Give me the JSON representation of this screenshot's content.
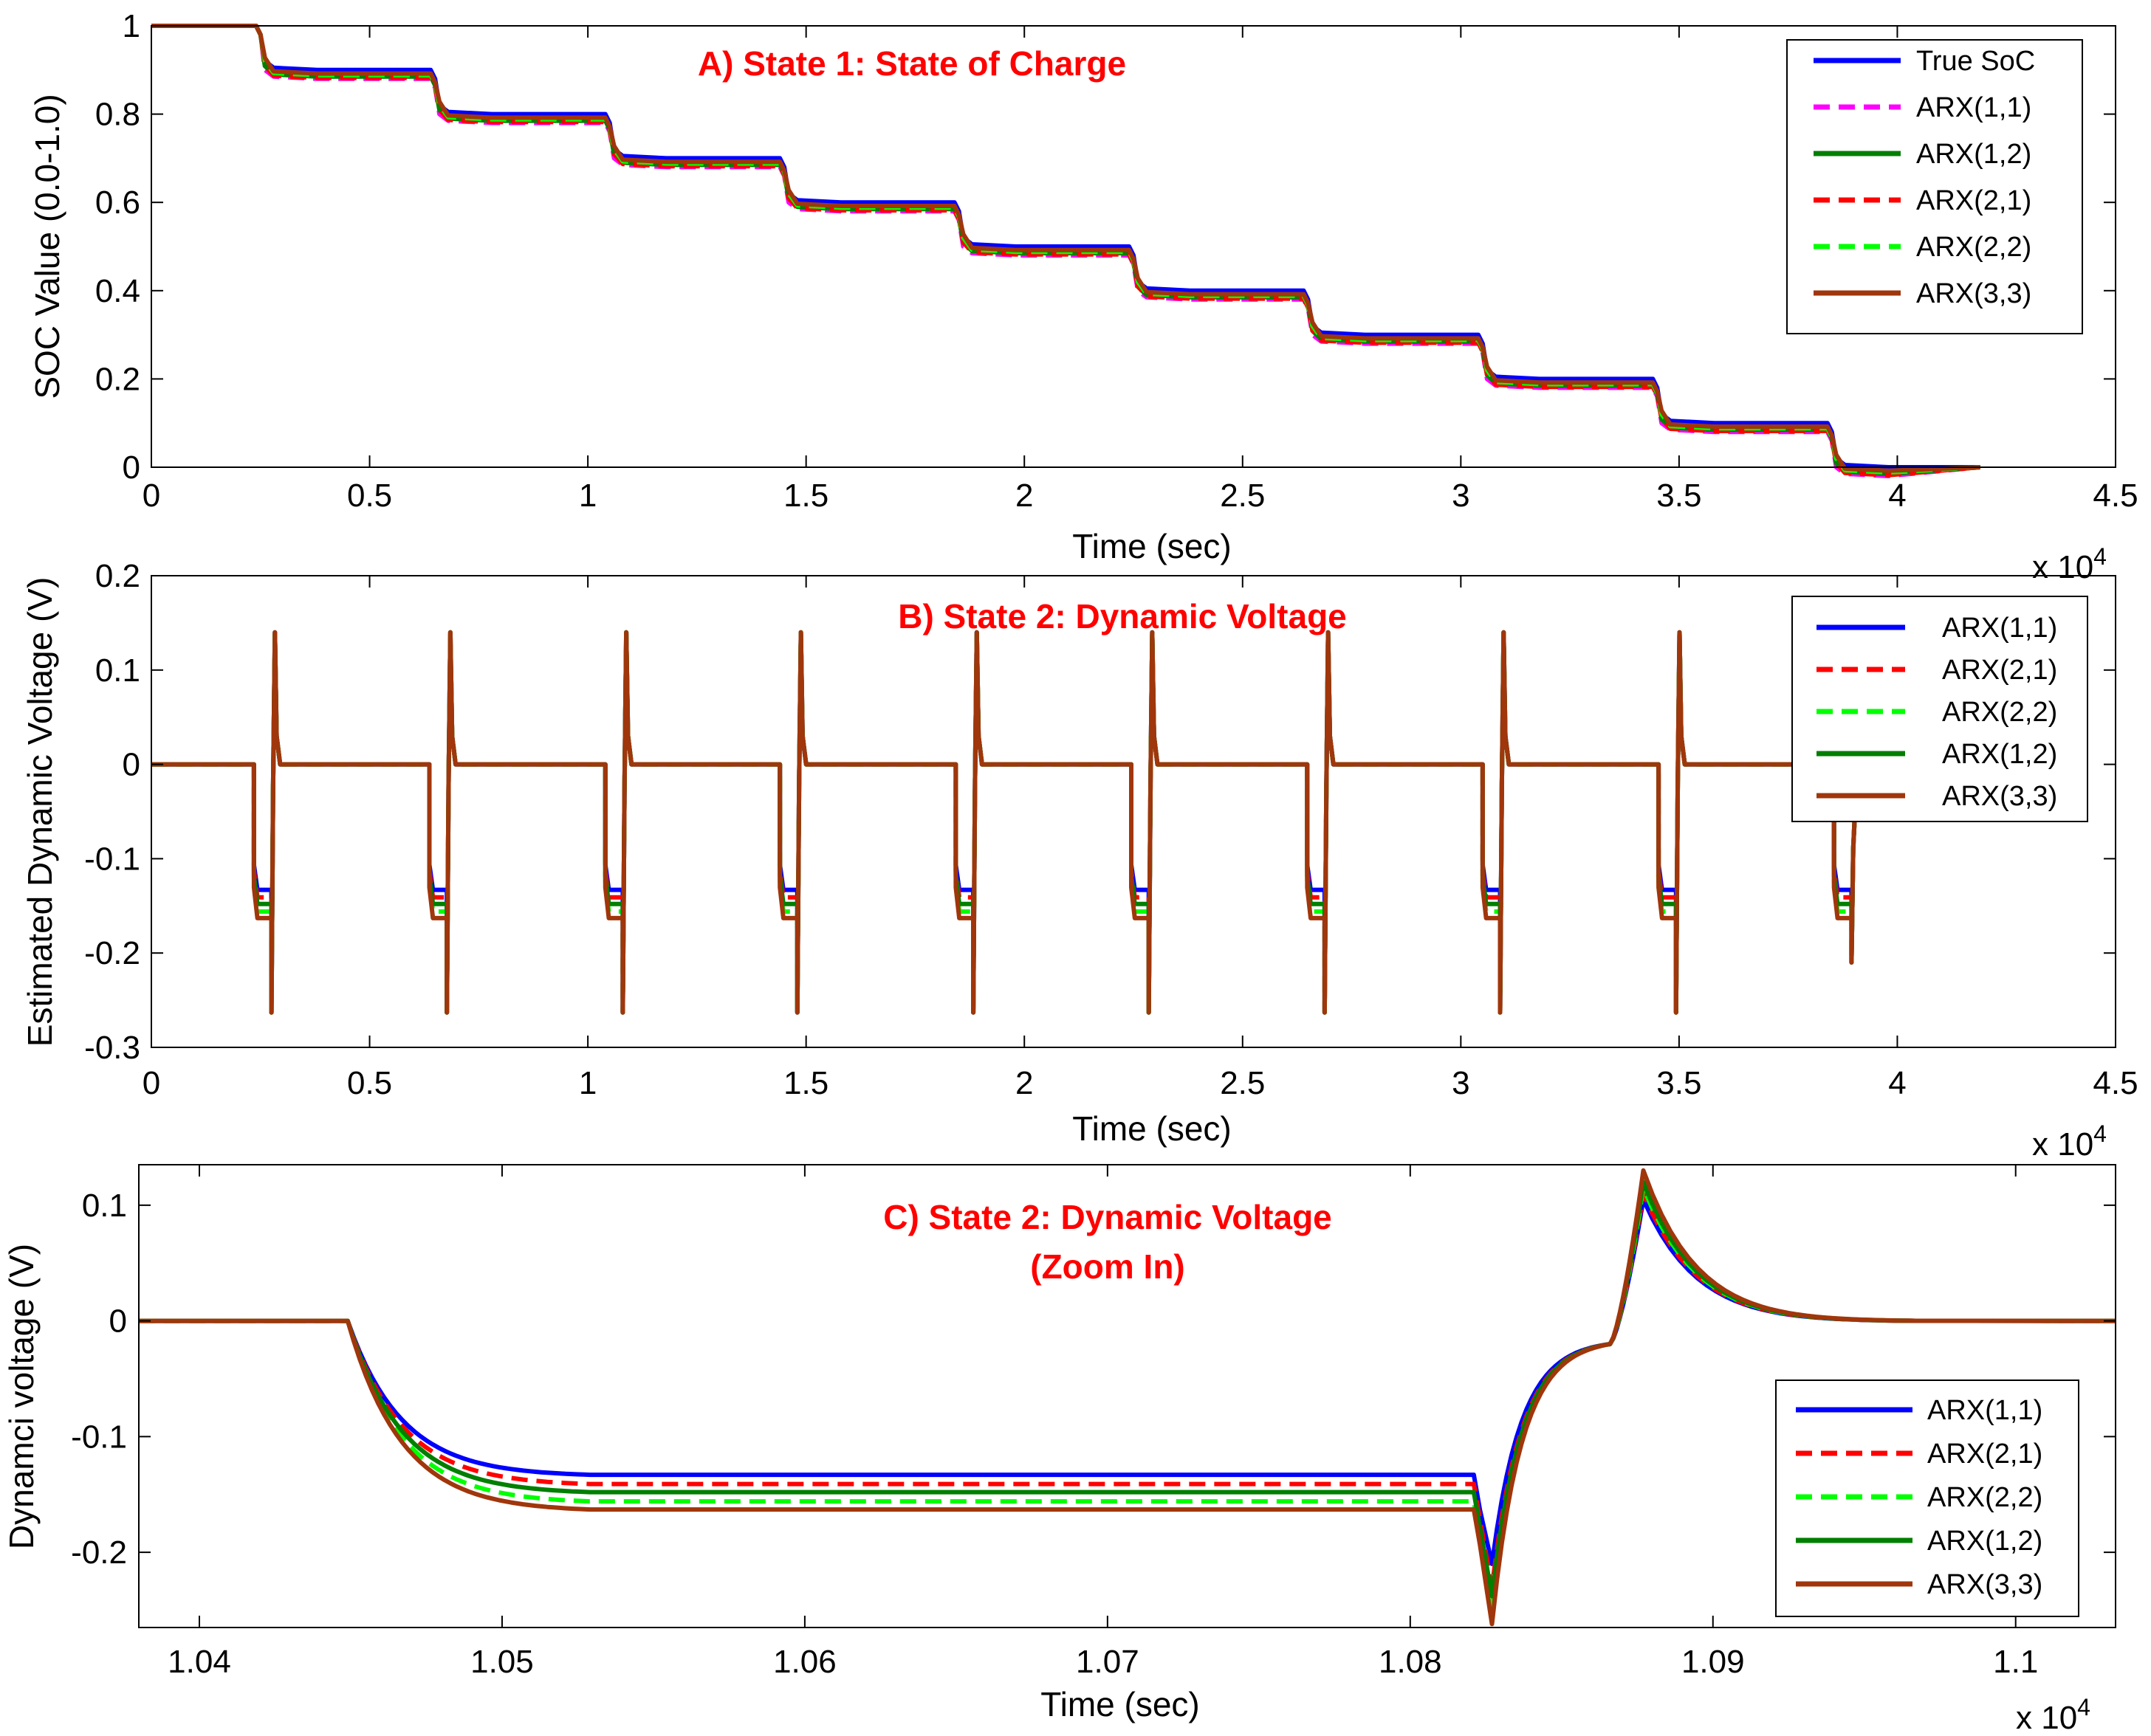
{
  "colors": {
    "title": "#ff0000",
    "series": {
      "True SoC": "#0000ff",
      "ARX(1,1)": "#0000ff",
      "ARX(1,1)_A": "#ff00ff",
      "ARX(1,2)": "#007f00",
      "ARX(2,1)": "#ff0000",
      "ARX(2,2)": "#00ff00",
      "ARX(3,3)": "#a0360b"
    }
  },
  "chart_data": [
    {
      "id": "A",
      "type": "line",
      "title": "A)  State 1: State of Charge",
      "xlabel": "Time (sec)",
      "ylabel": "SOC Value (0.0-1.0)",
      "x_exponent_label": "x 10",
      "x_exponent_power": "4",
      "xlim": [
        0,
        4.5
      ],
      "ylim": [
        0,
        1.0
      ],
      "xticks": [
        0,
        0.5,
        1,
        1.5,
        2,
        2.5,
        3,
        3.5,
        4,
        4.5
      ],
      "xtick_labels": [
        "0",
        "0.5",
        "1",
        "1.5",
        "2",
        "2.5",
        "3",
        "3.5",
        "4",
        "4.5"
      ],
      "yticks": [
        0,
        0.2,
        0.4,
        0.6,
        0.8,
        1
      ],
      "ytick_labels": [
        "0",
        "0.2",
        "0.4",
        "0.6",
        "0.8",
        "1"
      ],
      "legend_position": "top-right",
      "legend": [
        "True SoC",
        "ARX(1,1)",
        "ARX(1,2)",
        "ARX(2,1)",
        "ARX(2,2)",
        "ARX(3,3)"
      ],
      "legend_styles": [
        "solid",
        "dashed",
        "solid",
        "dashed",
        "dashed",
        "solid"
      ],
      "legend_color_keys": [
        "True SoC",
        "ARX(1,1)_A",
        "ARX(1,2)",
        "ARX(2,1)",
        "ARX(2,2)",
        "ARX(3,3)"
      ],
      "step_times": [
        0.24,
        0.64,
        1.04,
        1.44,
        1.84,
        2.24,
        2.64,
        3.04,
        3.44,
        3.84
      ],
      "step_duration": 0.04,
      "soc_levels": [
        1.0,
        0.9,
        0.8,
        0.7,
        0.6,
        0.5,
        0.4,
        0.3,
        0.2,
        0.1,
        0.0
      ],
      "est_offsets": {
        "ARX(1,1)": -0.02,
        "ARX(1,2)": -0.015,
        "ARX(2,1)": -0.018,
        "ARX(2,2)": -0.012,
        "ARX(3,3)": -0.008
      },
      "x_end": 4.19
    },
    {
      "id": "B",
      "type": "line",
      "title": "B)  State 2: Dynamic Voltage",
      "xlabel": "Time (sec)",
      "ylabel": "Estimated Dynamic Voltage (V)",
      "x_exponent_label": "x 10",
      "x_exponent_power": "4",
      "xlim": [
        0,
        4.5
      ],
      "ylim": [
        -0.3,
        0.2
      ],
      "xticks": [
        0,
        0.5,
        1,
        1.5,
        2,
        2.5,
        3,
        3.5,
        4,
        4.5
      ],
      "xtick_labels": [
        "0",
        "0.5",
        "1",
        "1.5",
        "2",
        "2.5",
        "3",
        "3.5",
        "4",
        "4.5"
      ],
      "yticks": [
        -0.3,
        -0.2,
        -0.1,
        0,
        0.1,
        0.2
      ],
      "ytick_labels": [
        "-0.3",
        "-0.2",
        "-0.1",
        "0",
        "0.1",
        "0.2"
      ],
      "legend_position": "top-right",
      "legend": [
        "ARX(1,1)",
        "ARX(2,1)",
        "ARX(2,2)",
        "ARX(1,2)",
        "ARX(3,3)"
      ],
      "legend_styles": [
        "solid",
        "dashed",
        "dashed",
        "solid",
        "solid"
      ],
      "legend_color_keys": [
        "ARX(1,1)",
        "ARX(2,1)",
        "ARX(2,2)",
        "ARX(1,2)",
        "ARX(3,3)"
      ],
      "pulse_starts": [
        0.235,
        0.637,
        1.04,
        1.44,
        1.843,
        2.245,
        2.648,
        3.05,
        3.453,
        3.855
      ],
      "pulse_width": 0.04,
      "plateaus": {
        "ARX(1,1)": -0.133,
        "ARX(2,1)": -0.141,
        "ARX(2,2)": -0.156,
        "ARX(1,2)": -0.148,
        "ARX(3,3)": -0.163
      },
      "min_spike": -0.263,
      "max_spike": 0.14,
      "last_min_spike": -0.21,
      "x_end": 4.19
    },
    {
      "id": "C",
      "type": "line",
      "title": "C)  State 2: Dynamic Voltage",
      "subtitle": "(Zoom In)",
      "xlabel": "Time (sec)",
      "ylabel": "Dynamci voltage (V)",
      "x_exponent_label": "x 10",
      "x_exponent_power": "4",
      "xlim": [
        1.038,
        1.1033
      ],
      "ylim": [
        -0.265,
        0.135
      ],
      "xticks": [
        1.04,
        1.05,
        1.06,
        1.07,
        1.08,
        1.09,
        1.1
      ],
      "xtick_labels": [
        "1.04",
        "1.05",
        "1.06",
        "1.07",
        "1.08",
        "1.09",
        "1.1"
      ],
      "yticks": [
        -0.2,
        -0.1,
        0,
        0.1
      ],
      "ytick_labels": [
        "-0.2",
        "-0.1",
        "0",
        "0.1"
      ],
      "legend_position": "bottom-right",
      "legend": [
        "ARX(1,1)",
        "ARX(2,1)",
        "ARX(2,2)",
        "ARX(1,2)",
        "ARX(3,3)"
      ],
      "legend_styles": [
        "solid",
        "dashed",
        "dashed",
        "solid",
        "solid"
      ],
      "legend_color_keys": [
        "ARX(1,1)",
        "ARX(2,1)",
        "ARX(2,2)",
        "ARX(1,2)",
        "ARX(3,3)"
      ],
      "pulse_start": 1.0449,
      "pulse_end": 1.0821,
      "relax_mid": 1.0866,
      "relax_peak": 1.0877,
      "plateaus": {
        "ARX(1,1)": -0.133,
        "ARX(2,1)": -0.141,
        "ARX(2,2)": -0.156,
        "ARX(1,2)": -0.148,
        "ARX(3,3)": -0.163
      },
      "end_mins": {
        "ARX(1,1)": -0.21,
        "ARX(2,1)": -0.23,
        "ARX(2,2)": -0.245,
        "ARX(1,2)": -0.238,
        "ARX(3,3)": -0.262
      },
      "peaks": {
        "ARX(1,1)": 0.105,
        "ARX(2,1)": 0.11,
        "ARX(2,2)": 0.115,
        "ARX(1,2)": 0.12,
        "ARX(3,3)": 0.13
      }
    }
  ]
}
